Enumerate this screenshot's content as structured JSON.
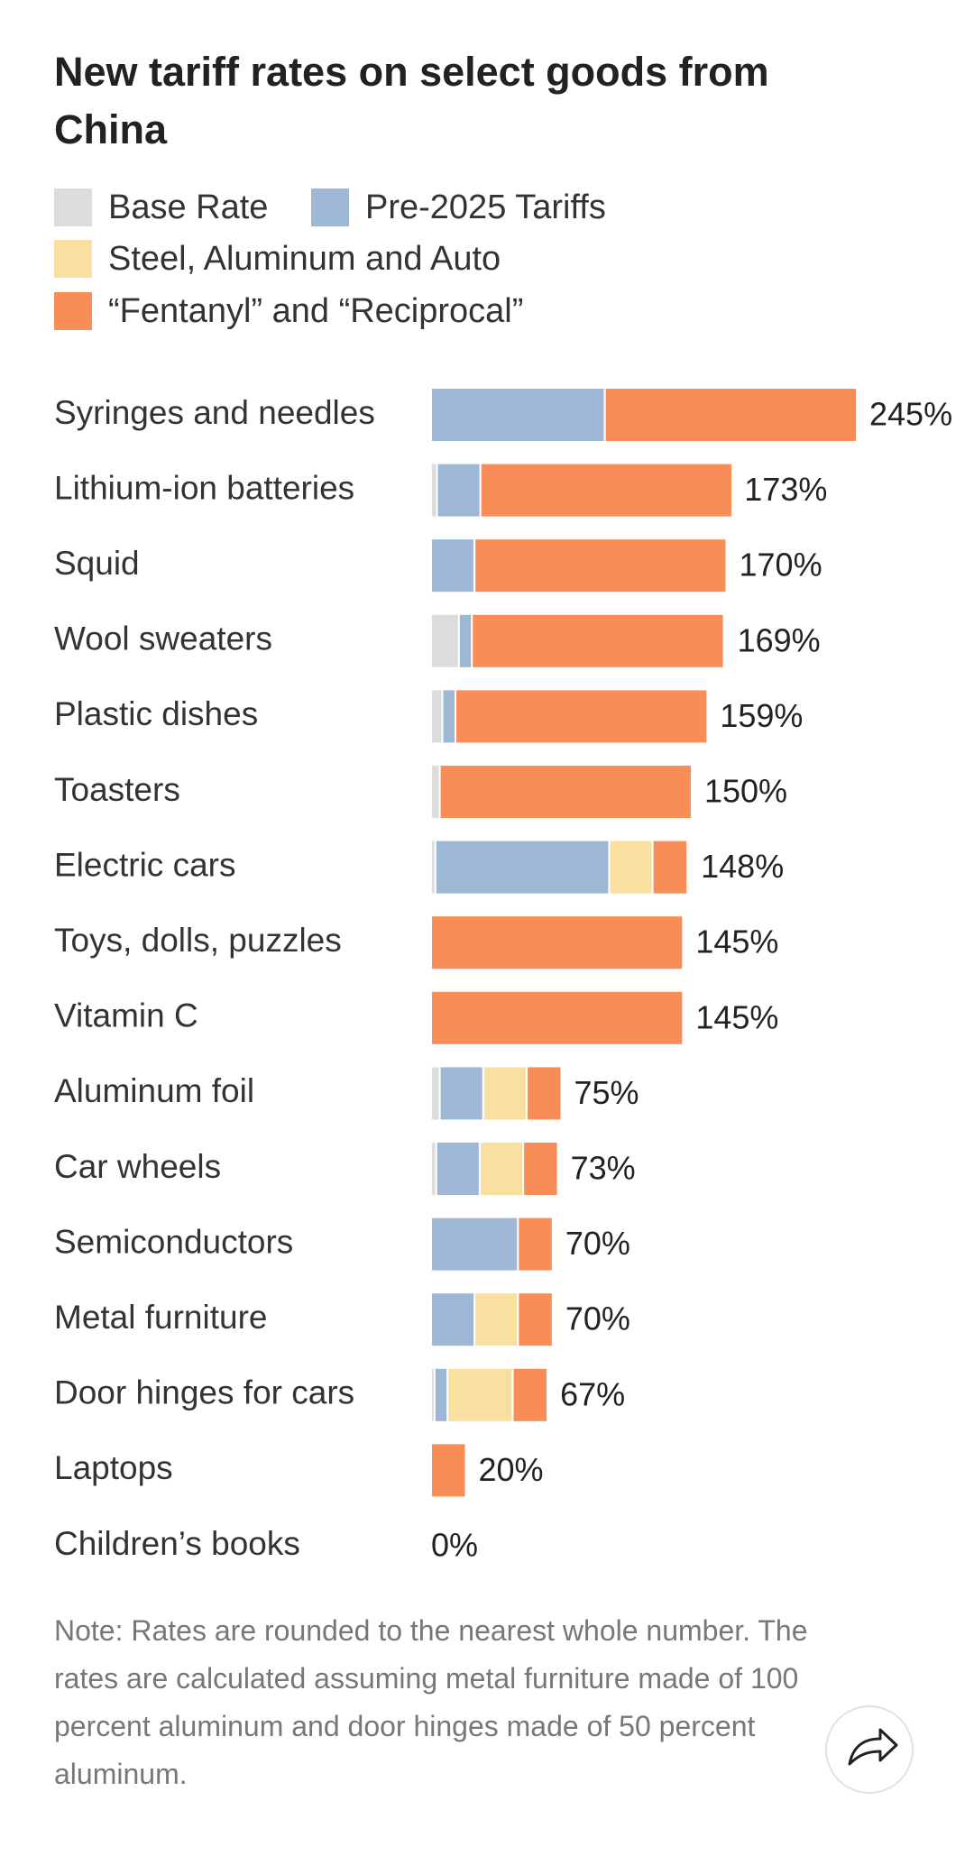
{
  "chart_data": {
    "type": "stacked-bar-horizontal",
    "title": "New tariff rates on select goods from China",
    "categories": [
      "Syringes and needles",
      "Lithium-ion batteries",
      "Squid",
      "Wool sweaters",
      "Plastic dishes",
      "Toasters",
      "Electric cars",
      "Toys, dolls, puzzles",
      "Vitamin C",
      "Aluminum foil",
      "Car wheels",
      "Semiconductors",
      "Metal furniture",
      "Door hinges for cars",
      "Laptops",
      "Children’s books"
    ],
    "series": [
      {
        "name": "Base Rate",
        "color": "#dcdcdc",
        "values": [
          0,
          3.4,
          0,
          16,
          6.5,
          5,
          2.5,
          0,
          0,
          5,
          3,
          0,
          0,
          2,
          0,
          0
        ]
      },
      {
        "name": "Pre-2025 Tariffs",
        "color": "#9db7d5",
        "values": [
          100,
          25,
          25,
          7.5,
          7.5,
          0,
          100,
          0,
          0,
          25,
          25,
          50,
          25,
          7.5,
          0,
          0
        ]
      },
      {
        "name": "Steel, Aluminum and Auto",
        "color": "#f9e0a0",
        "values": [
          0,
          0,
          0,
          0,
          0,
          0,
          25,
          0,
          0,
          25,
          25,
          0,
          25,
          37.5,
          0,
          0
        ]
      },
      {
        "name": "“Fentanyl” and “Reciprocal”",
        "color": "#f98d57",
        "values": [
          145,
          145,
          145,
          145,
          145,
          145,
          20,
          145,
          145,
          20,
          20,
          20,
          20,
          20,
          20,
          0
        ]
      }
    ],
    "totals": [
      245,
      173,
      170,
      169,
      159,
      150,
      148,
      145,
      145,
      75,
      73,
      70,
      70,
      67,
      20,
      0
    ],
    "total_labels": [
      "245%",
      "173%",
      "170%",
      "169%",
      "159%",
      "150%",
      "148%",
      "145%",
      "145%",
      "75%",
      "73%",
      "70%",
      "70%",
      "67%",
      "20%",
      "0%"
    ],
    "xlim": [
      0,
      245
    ],
    "note": "Note: Rates are rounded to the nearest whole number. The rates are calculated assuming metal furniture made of 100 percent aluminum and door hinges made of 50 percent aluminum."
  }
}
